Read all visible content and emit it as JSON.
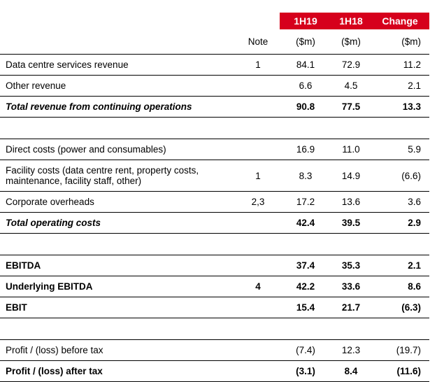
{
  "columns": {
    "period1": "1H19",
    "period2": "1H18",
    "change": "Change",
    "note": "Note",
    "unit1": "($m)",
    "unit2": "($m)",
    "unit3": "($m)"
  },
  "colors": {
    "header_bg": "#d6001c",
    "header_text": "#ffffff"
  },
  "rows": [
    {
      "label": "Data centre services revenue",
      "note": "1",
      "v1": "84.1",
      "v2": "72.9",
      "chg": "11.2"
    },
    {
      "label": "Other revenue",
      "note": "",
      "v1": "6.6",
      "v2": "4.5",
      "chg": "2.1"
    },
    {
      "label": "Total revenue from continuing operations",
      "note": "",
      "v1": "90.8",
      "v2": "77.5",
      "chg": "13.3"
    },
    {
      "label": "Direct costs (power and consumables)",
      "note": "",
      "v1": "16.9",
      "v2": "11.0",
      "chg": "5.9"
    },
    {
      "label": "Facility costs (data centre rent, property costs, maintenance, facility staff, other)",
      "note": "1",
      "v1": "8.3",
      "v2": "14.9",
      "chg": "(6.6)"
    },
    {
      "label": "Corporate overheads",
      "note": "2,3",
      "v1": "17.2",
      "v2": "13.6",
      "chg": "3.6"
    },
    {
      "label": "Total operating costs",
      "note": "",
      "v1": "42.4",
      "v2": "39.5",
      "chg": "2.9"
    },
    {
      "label": "EBITDA",
      "note": "",
      "v1": "37.4",
      "v2": "35.3",
      "chg": "2.1"
    },
    {
      "label": "Underlying EBITDA",
      "note": "4",
      "v1": "42.2",
      "v2": "33.6",
      "chg": "8.6"
    },
    {
      "label": "EBIT",
      "note": "",
      "v1": "15.4",
      "v2": "21.7",
      "chg": "(6.3)"
    },
    {
      "label": "Profit / (loss) before tax",
      "note": "",
      "v1": "(7.4)",
      "v2": "12.3",
      "chg": "(19.7)"
    },
    {
      "label": "Profit / (loss) after tax",
      "note": "",
      "v1": "(3.1)",
      "v2": "8.4",
      "chg": "(11.6)"
    }
  ]
}
